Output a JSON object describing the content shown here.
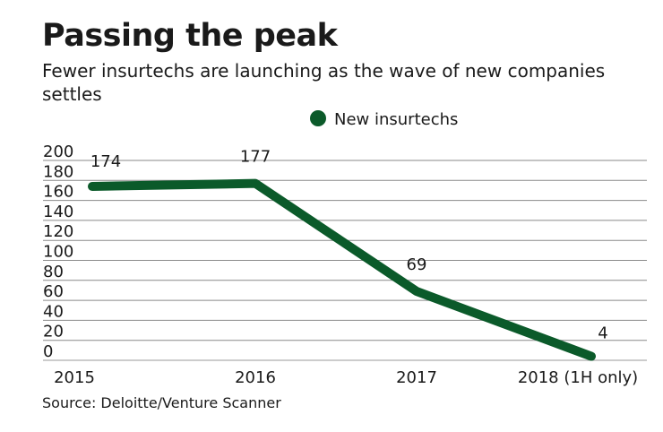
{
  "title": "Passing the peak",
  "subtitle": "Fewer insurtechs are launching as the wave of new companies settles",
  "source": "Source: Deloitte/Venture Scanner",
  "chart_data": {
    "type": "line",
    "categories": [
      "2015",
      "2016",
      "2017",
      "2018 (1H only)"
    ],
    "series": [
      {
        "name": "New insurtechs",
        "values": [
          174,
          177,
          69,
          4
        ],
        "color": "#0b5a2a"
      }
    ],
    "data_labels": [
      "174",
      "177",
      "69",
      "4"
    ],
    "ylim": [
      0,
      200
    ],
    "yticks": [
      0,
      20,
      40,
      60,
      80,
      100,
      120,
      140,
      160,
      180,
      200
    ],
    "grid": true,
    "legend": "top-center",
    "xlabel": "",
    "ylabel": ""
  }
}
